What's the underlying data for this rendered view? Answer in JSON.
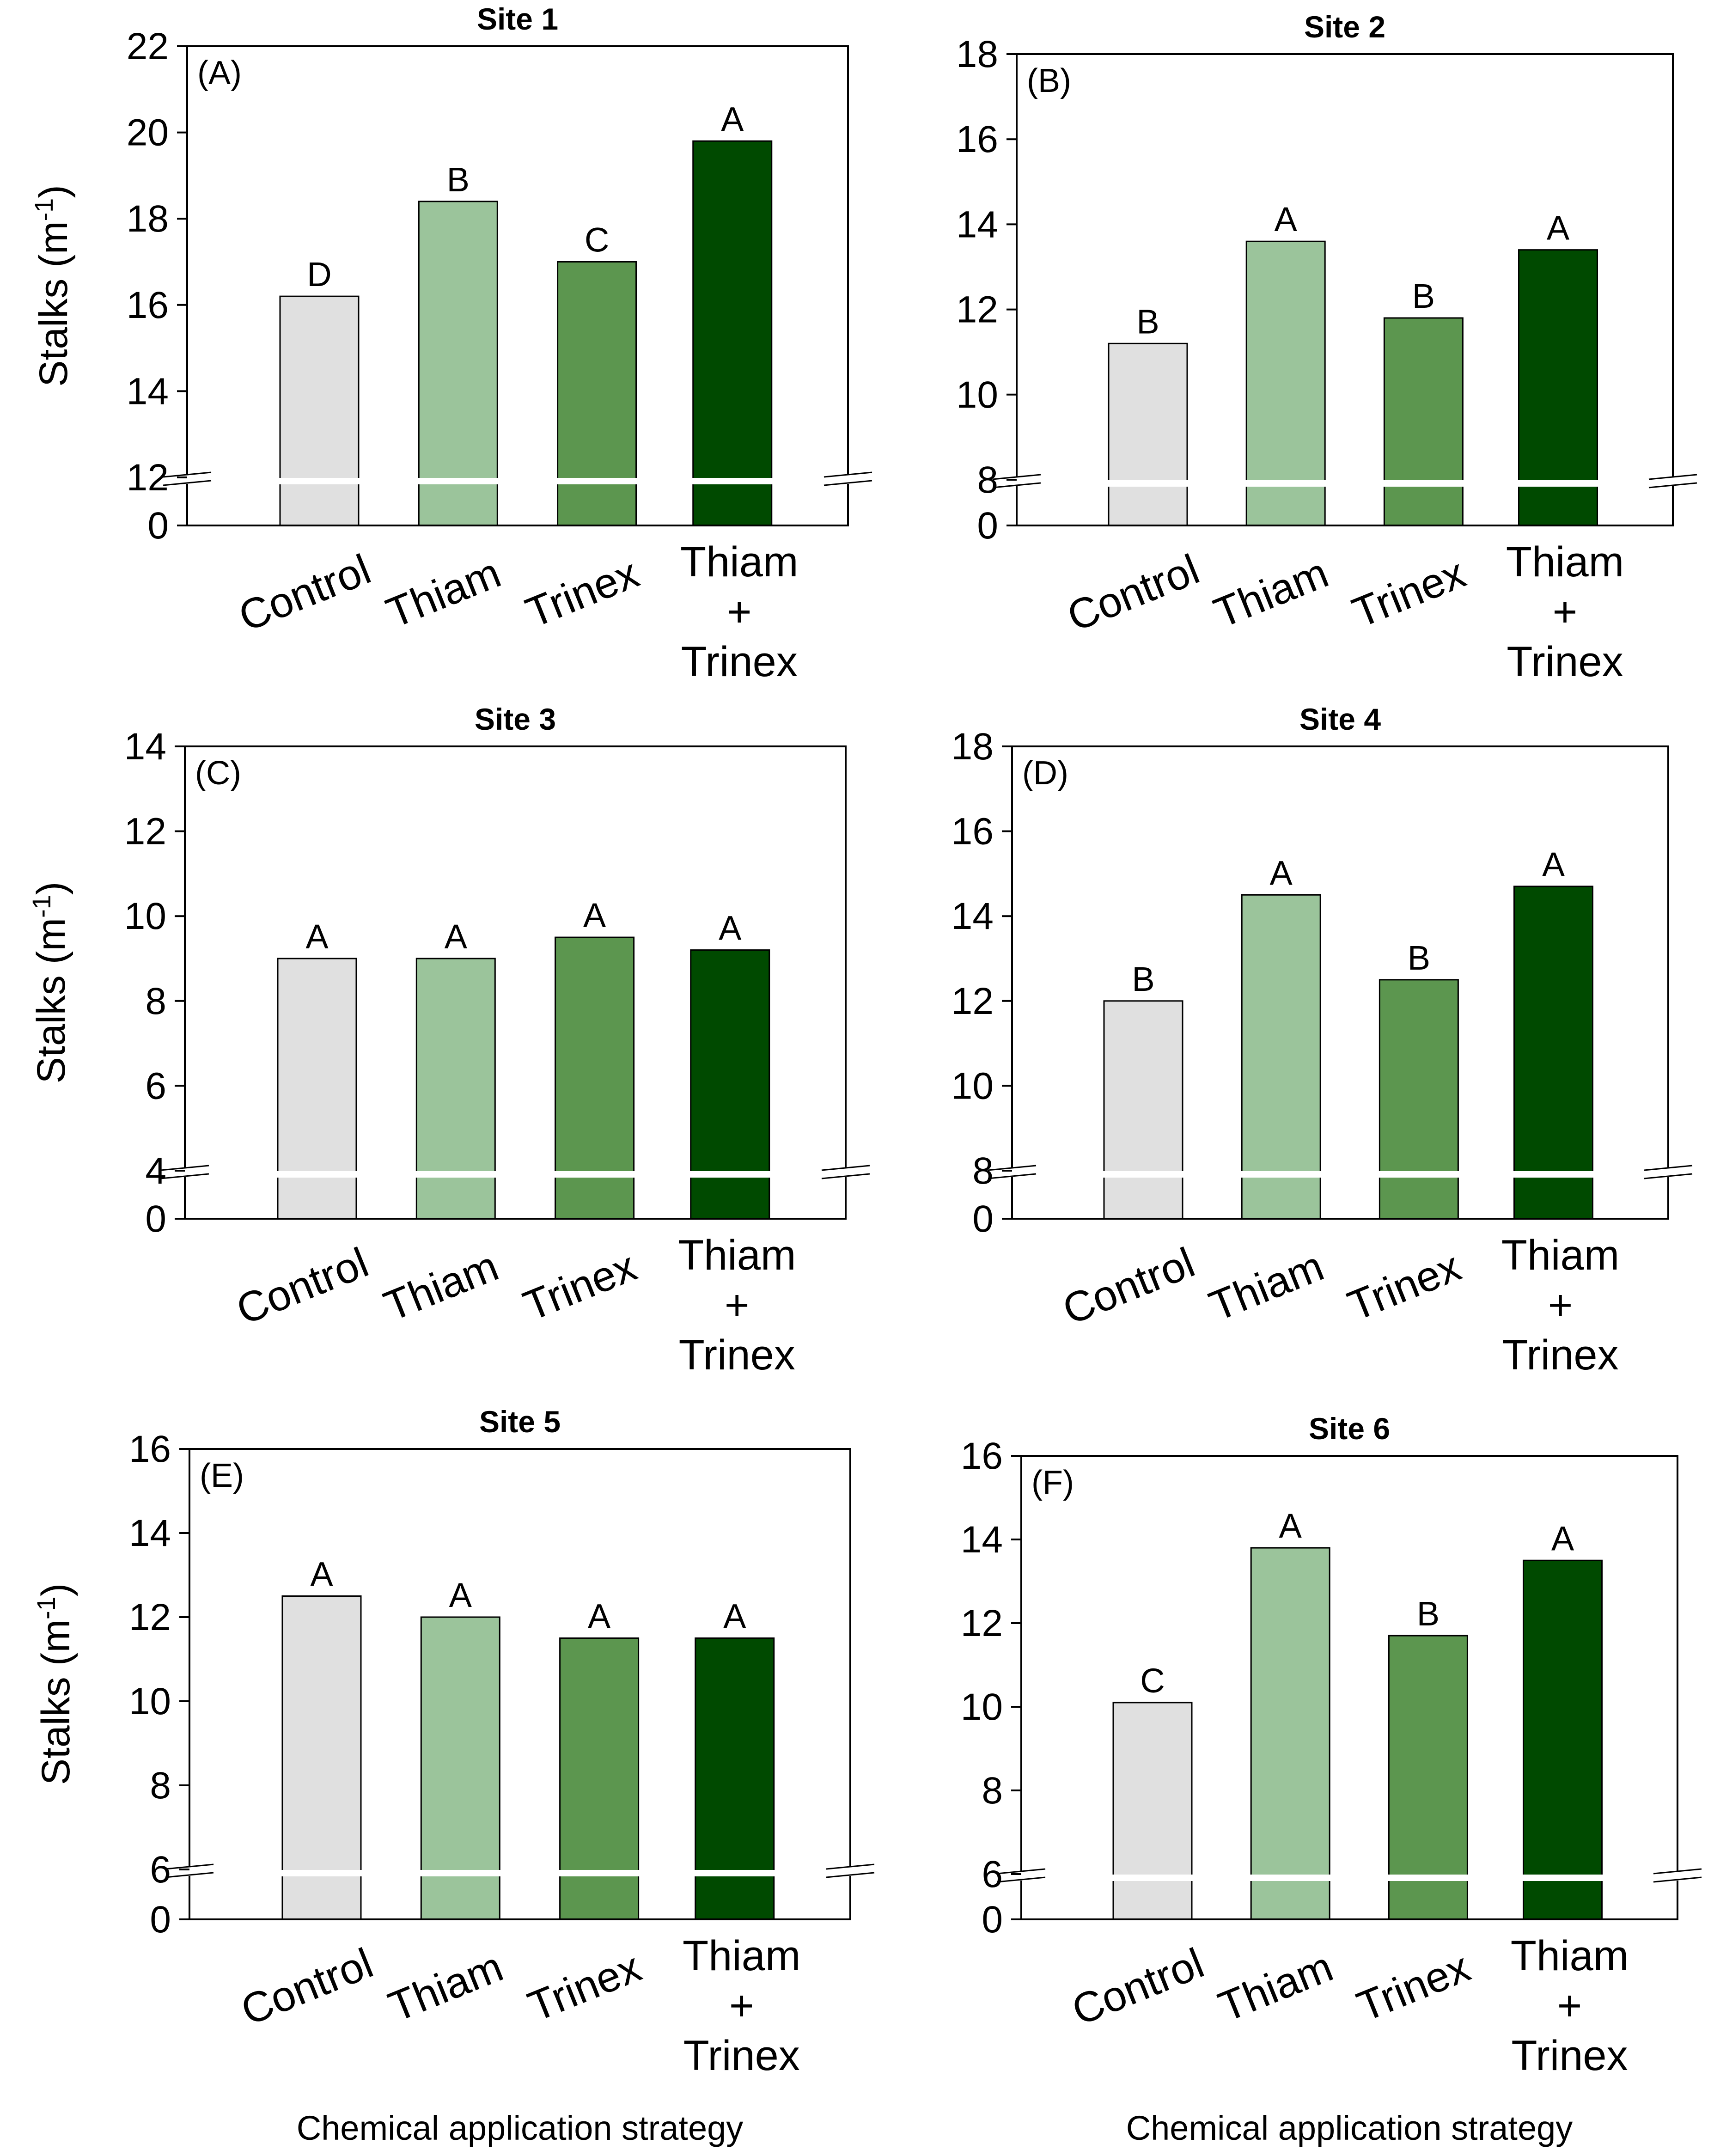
{
  "figure": {
    "x_axis_label": "Chemical application strategy",
    "y_axis_label": "Stalks (m",
    "y_axis_unit_superscript": "-1",
    "y_axis_label_close": ")",
    "category_lines": [
      [
        "Control"
      ],
      [
        "Thiam"
      ],
      [
        "Trinex"
      ],
      [
        "Thiam",
        "+",
        "Trinex"
      ]
    ],
    "bar_colors": [
      "#e0e0e0",
      "#9bc49b",
      "#5c964f",
      "#004a00"
    ]
  },
  "chart_data": [
    {
      "type": "bar",
      "panel": "(A)",
      "title": "Site 1",
      "categories": [
        "Control",
        "Thiam",
        "Trinex",
        "Thiam + Trinex"
      ],
      "values": [
        16.2,
        18.4,
        17.0,
        19.8
      ],
      "significance": [
        "D",
        "B",
        "C",
        "A"
      ],
      "ylim": [
        12,
        22
      ],
      "yticks": [
        "12",
        "14",
        "16",
        "18",
        "20",
        "22"
      ],
      "axis_break": true,
      "baseline_label": "0",
      "show_ylabel": true,
      "show_xlabel": false
    },
    {
      "type": "bar",
      "panel": "(B)",
      "title": "Site 2",
      "categories": [
        "Control",
        "Thiam",
        "Trinex",
        "Thiam + Trinex"
      ],
      "values": [
        11.2,
        13.6,
        11.8,
        13.4
      ],
      "significance": [
        "B",
        "A",
        "B",
        "A"
      ],
      "ylim": [
        8,
        18
      ],
      "yticks": [
        "8",
        "10",
        "12",
        "14",
        "16",
        "18"
      ],
      "axis_break": true,
      "baseline_label": "0",
      "show_ylabel": false,
      "show_xlabel": false
    },
    {
      "type": "bar",
      "panel": "(C)",
      "title": "Site 3",
      "categories": [
        "Control",
        "Thiam",
        "Trinex",
        "Thiam + Trinex"
      ],
      "values": [
        9.0,
        9.0,
        9.5,
        9.2
      ],
      "significance": [
        "A",
        "A",
        "A",
        "A"
      ],
      "ylim": [
        4,
        14
      ],
      "yticks": [
        "4",
        "6",
        "8",
        "10",
        "12",
        "14"
      ],
      "axis_break": true,
      "baseline_label": "0",
      "show_ylabel": true,
      "show_xlabel": false
    },
    {
      "type": "bar",
      "panel": "(D)",
      "title": "Site 4",
      "categories": [
        "Control",
        "Thiam",
        "Trinex",
        "Thiam + Trinex"
      ],
      "values": [
        12.0,
        14.5,
        12.5,
        14.7
      ],
      "significance": [
        "B",
        "A",
        "B",
        "A"
      ],
      "ylim": [
        8,
        18
      ],
      "yticks": [
        "8",
        "10",
        "12",
        "14",
        "16",
        "18"
      ],
      "axis_break": true,
      "baseline_label": "0",
      "show_ylabel": false,
      "show_xlabel": false
    },
    {
      "type": "bar",
      "panel": "(E)",
      "title": "Site 5",
      "categories": [
        "Control",
        "Thiam",
        "Trinex",
        "Thiam + Trinex"
      ],
      "values": [
        12.5,
        12.0,
        11.5,
        11.5
      ],
      "significance": [
        "A",
        "A",
        "A",
        "A"
      ],
      "ylim": [
        6,
        16
      ],
      "yticks": [
        "6",
        "8",
        "10",
        "12",
        "14",
        "16"
      ],
      "axis_break": true,
      "baseline_label": "0",
      "show_ylabel": true,
      "show_xlabel": true
    },
    {
      "type": "bar",
      "panel": "(F)",
      "title": "Site 6",
      "categories": [
        "Control",
        "Thiam",
        "Trinex",
        "Thiam + Trinex"
      ],
      "values": [
        10.1,
        13.8,
        11.7,
        13.5
      ],
      "significance": [
        "C",
        "A",
        "B",
        "A"
      ],
      "ylim": [
        6,
        16
      ],
      "yticks": [
        "6",
        "8",
        "10",
        "12",
        "14",
        "16"
      ],
      "axis_break": true,
      "baseline_label": "0",
      "show_ylabel": false,
      "show_xlabel": true
    }
  ]
}
